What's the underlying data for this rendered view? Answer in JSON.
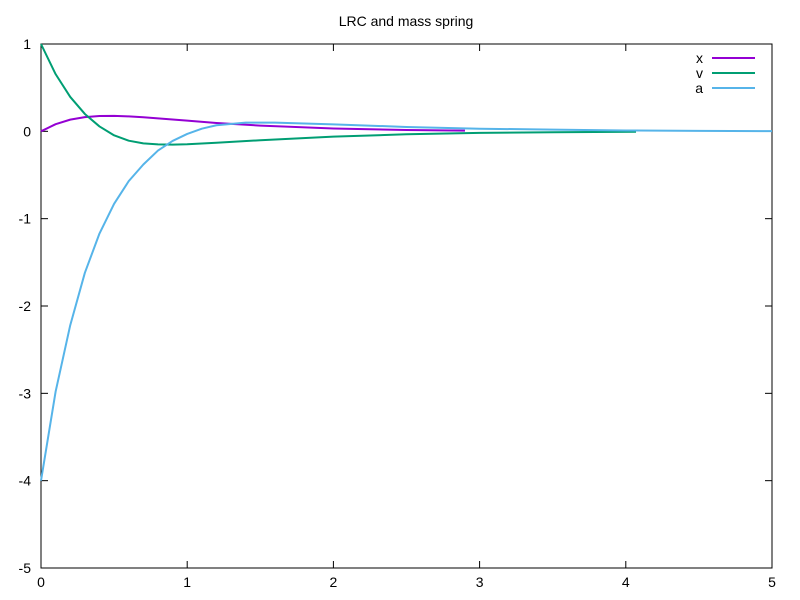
{
  "chart_data": {
    "type": "line",
    "title": "LRC and mass spring",
    "xlabel": "",
    "ylabel": "",
    "xlim": [
      0,
      5
    ],
    "ylim": [
      -5,
      1
    ],
    "x_ticks": [
      0,
      1,
      2,
      3,
      4,
      5
    ],
    "y_ticks": [
      -5,
      -4,
      -3,
      -2,
      -1,
      0,
      1
    ],
    "grid": false,
    "legend_position": "top-right",
    "series": [
      {
        "name": "x",
        "color": "#9400d3",
        "x": [
          0,
          0.1,
          0.2,
          0.3,
          0.4,
          0.5,
          0.6,
          0.7,
          0.8,
          1.0,
          1.2,
          1.5,
          2.0,
          2.5,
          2.9
        ],
        "y": [
          0,
          0.082,
          0.134,
          0.163,
          0.175,
          0.177,
          0.171,
          0.161,
          0.149,
          0.122,
          0.096,
          0.066,
          0.033,
          0.015,
          0.008
        ]
      },
      {
        "name": "v",
        "color": "#009e73",
        "x": [
          0,
          0.1,
          0.2,
          0.3,
          0.4,
          0.5,
          0.6,
          0.7,
          0.8,
          0.9,
          1.0,
          1.2,
          1.5,
          2.0,
          2.5,
          3.0,
          3.5,
          4.07
        ],
        "y": [
          1,
          0.655,
          0.394,
          0.199,
          0.056,
          -0.046,
          -0.107,
          -0.138,
          -0.15,
          -0.152,
          -0.148,
          -0.13,
          -0.102,
          -0.061,
          -0.034,
          -0.018,
          -0.01,
          -0.005
        ]
      },
      {
        "name": "a",
        "color": "#56b4e9",
        "x": [
          0,
          0.1,
          0.2,
          0.3,
          0.4,
          0.5,
          0.6,
          0.7,
          0.8,
          0.9,
          1.0,
          1.1,
          1.2,
          1.4,
          1.6,
          2.0,
          2.5,
          3.0,
          3.5,
          4.0,
          4.5,
          5.0
        ],
        "y": [
          -4,
          -2.98,
          -2.22,
          -1.62,
          -1.17,
          -0.83,
          -0.57,
          -0.38,
          -0.22,
          -0.11,
          -0.03,
          0.03,
          0.07,
          0.1,
          0.1,
          0.08,
          0.05,
          0.03,
          0.02,
          0.01,
          0.005,
          0.002
        ]
      }
    ]
  }
}
